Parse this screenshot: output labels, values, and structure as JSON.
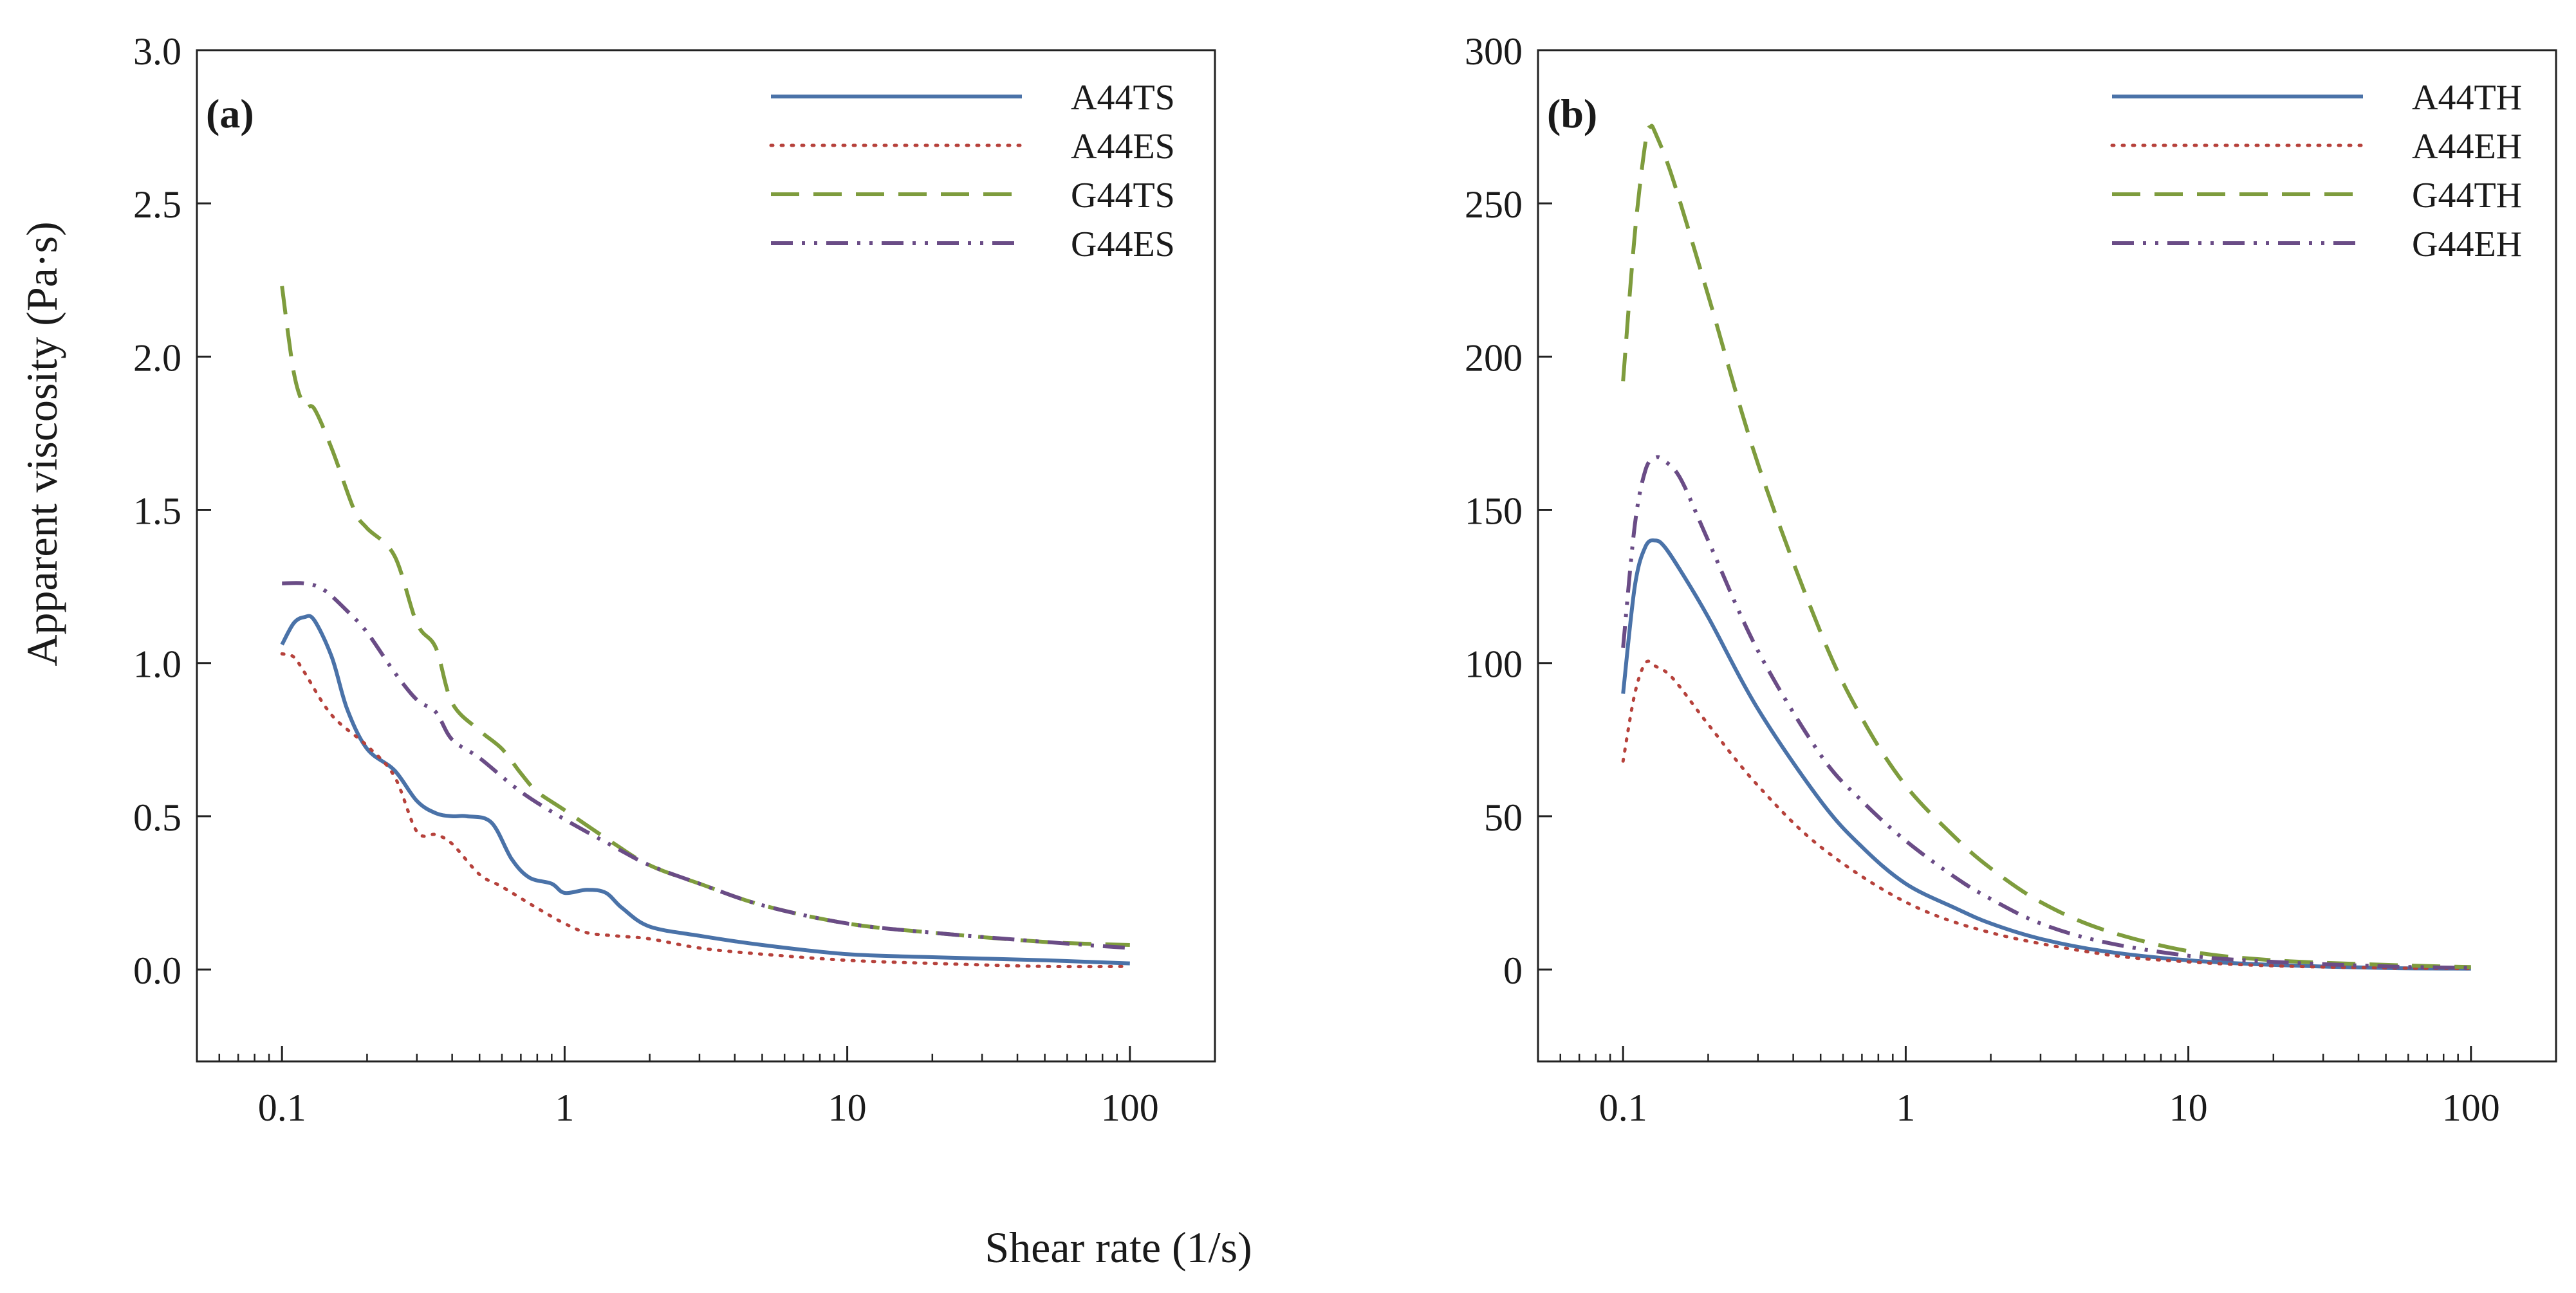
{
  "figure": {
    "ylabel": "Apparent viscosity (Pa·s)",
    "xlabel": "Shear rate (1/s)"
  },
  "chart_data": [
    {
      "type": "line",
      "panel_label": "(a)",
      "title": "",
      "xlabel": "Shear rate (1/s)",
      "ylabel": "Apparent viscosity (Pa·s)",
      "xscale": "log",
      "xlim": [
        0.05,
        200
      ],
      "ylim": [
        -0.3,
        3.0
      ],
      "xticks": [
        0.1,
        1,
        10,
        100
      ],
      "xtick_labels": [
        "0.1",
        "1",
        "10",
        "100"
      ],
      "yticks": [
        0,
        0.5,
        1,
        1.5,
        2,
        2.5,
        3
      ],
      "ytick_labels": [
        "0.0",
        "0.5",
        "1.0",
        "1.5",
        "2.0",
        "2.5",
        "3.0"
      ],
      "grid": false,
      "legend_position": "top-right",
      "series": [
        {
          "name": "A44TS",
          "color": "#4a72a8",
          "style": "solid",
          "x": [
            0.1,
            0.11,
            0.12,
            0.13,
            0.15,
            0.17,
            0.2,
            0.25,
            0.3,
            0.35,
            0.4,
            0.45,
            0.55,
            0.65,
            0.75,
            0.9,
            1.0,
            1.2,
            1.4,
            1.6,
            2.0,
            3.0,
            5.0,
            10.0,
            20.0,
            50.0,
            100.0
          ],
          "y": [
            1.06,
            1.13,
            1.15,
            1.14,
            1.02,
            0.85,
            0.72,
            0.65,
            0.55,
            0.51,
            0.5,
            0.5,
            0.48,
            0.36,
            0.3,
            0.28,
            0.25,
            0.26,
            0.25,
            0.2,
            0.14,
            0.11,
            0.08,
            0.05,
            0.04,
            0.03,
            0.02
          ]
        },
        {
          "name": "A44ES",
          "color": "#b6413b",
          "style": "dotted",
          "x": [
            0.1,
            0.11,
            0.12,
            0.15,
            0.2,
            0.25,
            0.3,
            0.35,
            0.4,
            0.5,
            0.6,
            0.8,
            1.0,
            1.2,
            1.5,
            2.0,
            3.0,
            5.0,
            10.0,
            20.0,
            50.0,
            100.0
          ],
          "y": [
            1.03,
            1.02,
            0.97,
            0.83,
            0.73,
            0.63,
            0.45,
            0.44,
            0.41,
            0.31,
            0.27,
            0.2,
            0.15,
            0.12,
            0.11,
            0.1,
            0.07,
            0.05,
            0.03,
            0.02,
            0.01,
            0.01
          ]
        },
        {
          "name": "G44TS",
          "color": "#7e9c3d",
          "style": "dashed",
          "x": [
            0.1,
            0.11,
            0.12,
            0.13,
            0.15,
            0.18,
            0.2,
            0.25,
            0.3,
            0.35,
            0.4,
            0.5,
            0.6,
            0.7,
            0.8,
            1.0,
            1.5,
            2.0,
            3.0,
            5.0,
            10.0,
            20.0,
            50.0,
            100.0
          ],
          "y": [
            2.23,
            1.95,
            1.84,
            1.83,
            1.7,
            1.5,
            1.44,
            1.35,
            1.13,
            1.05,
            0.87,
            0.78,
            0.72,
            0.64,
            0.58,
            0.52,
            0.41,
            0.34,
            0.28,
            0.21,
            0.15,
            0.12,
            0.09,
            0.08
          ]
        },
        {
          "name": "G44ES",
          "color": "#6a4c86",
          "style": "dash-dot-dot",
          "x": [
            0.1,
            0.12,
            0.14,
            0.17,
            0.2,
            0.25,
            0.3,
            0.35,
            0.4,
            0.5,
            0.7,
            1.0,
            1.5,
            2.0,
            3.0,
            5.0,
            10.0,
            20.0,
            50.0,
            100.0
          ],
          "y": [
            1.26,
            1.26,
            1.24,
            1.17,
            1.1,
            0.97,
            0.88,
            0.84,
            0.75,
            0.69,
            0.58,
            0.49,
            0.4,
            0.34,
            0.28,
            0.21,
            0.15,
            0.12,
            0.09,
            0.07
          ]
        }
      ]
    },
    {
      "type": "line",
      "panel_label": "(b)",
      "title": "",
      "xlabel": "Shear rate (1/s)",
      "ylabel": "Apparent viscosity (Pa·s)",
      "xscale": "log",
      "xlim": [
        0.05,
        200
      ],
      "ylim": [
        -30,
        300
      ],
      "xticks": [
        0.1,
        1,
        10,
        100
      ],
      "xtick_labels": [
        "0.1",
        "1",
        "10",
        "100"
      ],
      "yticks": [
        0,
        50,
        100,
        150,
        200,
        250,
        300
      ],
      "ytick_labels": [
        "0",
        "50",
        "100",
        "150",
        "200",
        "250",
        "300"
      ],
      "grid": false,
      "legend_position": "top-right",
      "series": [
        {
          "name": "A44TH",
          "color": "#4a72a8",
          "style": "solid",
          "x": [
            0.1,
            0.11,
            0.12,
            0.13,
            0.14,
            0.16,
            0.2,
            0.3,
            0.5,
            0.7,
            1.0,
            1.5,
            2.0,
            3.0,
            5.0,
            10.0,
            20.0,
            50.0,
            100.0
          ],
          "y": [
            90,
            125,
            138,
            140,
            138,
            130,
            115,
            85,
            55,
            40,
            28,
            20,
            15,
            10,
            6,
            3,
            1.5,
            0.5,
            0.3
          ]
        },
        {
          "name": "A44EH",
          "color": "#b6413b",
          "style": "dotted",
          "x": [
            0.1,
            0.11,
            0.12,
            0.13,
            0.15,
            0.2,
            0.3,
            0.5,
            1.0,
            2.0,
            5.0,
            10.0,
            20.0,
            50.0,
            100.0
          ],
          "y": [
            68,
            90,
            100,
            99,
            95,
            80,
            60,
            40,
            22,
            12,
            5,
            2.5,
            1.2,
            0.5,
            0.3
          ]
        },
        {
          "name": "G44TH",
          "color": "#7e9c3d",
          "style": "dashed",
          "x": [
            0.1,
            0.11,
            0.12,
            0.125,
            0.13,
            0.15,
            0.2,
            0.3,
            0.5,
            0.7,
            1.0,
            1.5,
            2.0,
            3.0,
            5.0,
            10.0,
            20.0,
            50.0,
            100.0
          ],
          "y": [
            192,
            240,
            270,
            275,
            273,
            258,
            220,
            165,
            110,
            82,
            60,
            43,
            33,
            22,
            13,
            6,
            3,
            1.5,
            0.8
          ]
        },
        {
          "name": "G44EH",
          "color": "#6a4c86",
          "style": "dash-dot-dot",
          "x": [
            0.1,
            0.11,
            0.12,
            0.13,
            0.14,
            0.16,
            0.2,
            0.3,
            0.5,
            0.7,
            1.0,
            1.5,
            2.0,
            3.0,
            5.0,
            10.0,
            20.0,
            50.0,
            100.0
          ],
          "y": [
            105,
            145,
            163,
            167,
            166,
            160,
            140,
            104,
            70,
            55,
            42,
            30,
            23,
            15,
            9,
            4.5,
            2.5,
            1,
            0.5
          ]
        }
      ]
    }
  ]
}
